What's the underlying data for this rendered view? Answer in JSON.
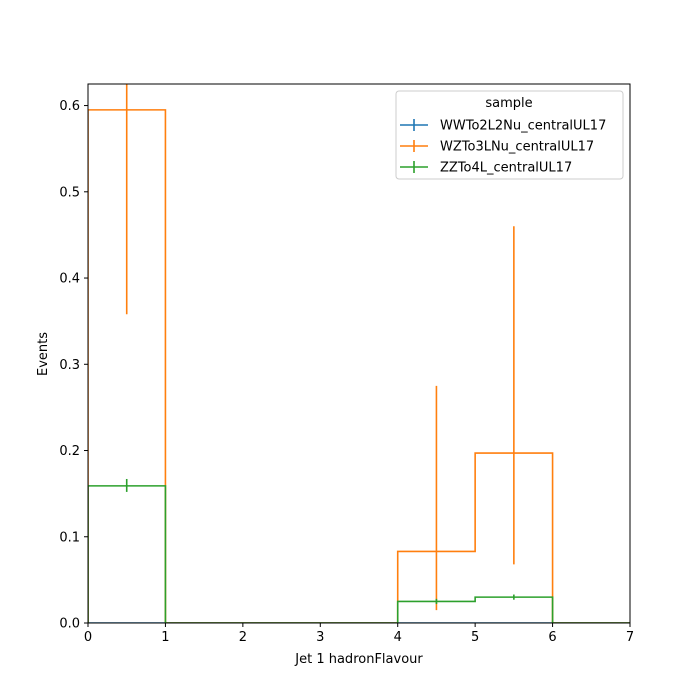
{
  "chart_data": {
    "type": "step-histogram",
    "xlabel": "Jet 1 hadronFlavour",
    "ylabel": "Events",
    "xlim": [
      0,
      7
    ],
    "ylim": [
      0,
      0.625
    ],
    "xticks": [
      0,
      1,
      2,
      3,
      4,
      5,
      6,
      7
    ],
    "yticks": [
      0.0,
      0.1,
      0.2,
      0.3,
      0.4,
      0.5,
      0.6
    ],
    "ytick_labels": [
      "0.0",
      "0.1",
      "0.2",
      "0.3",
      "0.4",
      "0.5",
      "0.6"
    ],
    "bin_edges": [
      0,
      1,
      2,
      3,
      4,
      5,
      6,
      7
    ],
    "grid": false,
    "legend": {
      "title": "sample",
      "placement": "top-right"
    },
    "series": [
      {
        "name": "WWTo2L2Nu_centralUL17",
        "color": "#1f77b4",
        "values": [
          0,
          0,
          0,
          0,
          0,
          0,
          0
        ],
        "errors": []
      },
      {
        "name": "WZTo3LNu_centralUL17",
        "color": "#ff7f0e",
        "values": [
          0.595,
          0,
          0,
          0,
          0.083,
          0.197,
          0
        ],
        "errors": [
          {
            "x": 0.5,
            "low": 0.358,
            "high": 0.66
          },
          {
            "x": 4.5,
            "low": 0.015,
            "high": 0.275
          },
          {
            "x": 5.5,
            "low": 0.068,
            "high": 0.46
          }
        ]
      },
      {
        "name": "ZZTo4L_centralUL17",
        "color": "#2ca02c",
        "values": [
          0.159,
          0,
          0,
          0,
          0.025,
          0.03,
          0
        ],
        "errors": [
          {
            "x": 0.5,
            "low": 0.152,
            "high": 0.167
          },
          {
            "x": 4.5,
            "low": 0.022,
            "high": 0.028
          },
          {
            "x": 5.5,
            "low": 0.027,
            "high": 0.033
          }
        ]
      }
    ]
  }
}
